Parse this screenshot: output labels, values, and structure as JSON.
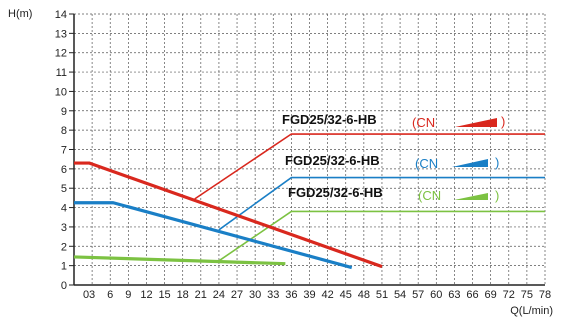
{
  "chart_data": {
    "type": "line",
    "ylabel": "H(m)",
    "xlabel": "Q(L/min)",
    "xlim": [
      0,
      78
    ],
    "ylim": [
      0,
      14
    ],
    "x_ticks": [
      "0",
      "3",
      "6",
      "9",
      "12",
      "15",
      "18",
      "21",
      "24",
      "27",
      "30",
      "33",
      "36",
      "39",
      "42",
      "45",
      "48",
      "51",
      "54",
      "57",
      "60",
      "63",
      "66",
      "69",
      "72",
      "75",
      "78"
    ],
    "y_ticks": [
      "0",
      "1",
      "2",
      "3",
      "4",
      "5",
      "6",
      "7",
      "8",
      "9",
      "10",
      "11",
      "12",
      "13",
      "14"
    ],
    "grid": true,
    "series": [
      {
        "name": "FGD25/32-6-HB",
        "tag": "CN",
        "color": "#d9281e",
        "points": [
          [
            0,
            6.3
          ],
          [
            2.5,
            6.3
          ],
          [
            51,
            0.95
          ]
        ],
        "leader": [
          [
            20,
            4.45
          ],
          [
            36,
            7.8
          ],
          [
            78,
            7.8
          ]
        ]
      },
      {
        "name": "FGD25/32-6-HB",
        "tag": "CN",
        "color": "#1a7fc6",
        "points": [
          [
            0,
            4.25
          ],
          [
            6.5,
            4.25
          ],
          [
            46,
            0.9
          ]
        ],
        "leader": [
          [
            24,
            2.85
          ],
          [
            36,
            5.55
          ],
          [
            78,
            5.55
          ]
        ]
      },
      {
        "name": "FGD25/32-6-HB",
        "tag": "CN",
        "color": "#7cc242",
        "points": [
          [
            0,
            1.45
          ],
          [
            35,
            1.1
          ]
        ],
        "leader": [
          [
            24,
            1.25
          ],
          [
            36,
            3.8
          ],
          [
            78,
            3.8
          ]
        ]
      }
    ]
  }
}
